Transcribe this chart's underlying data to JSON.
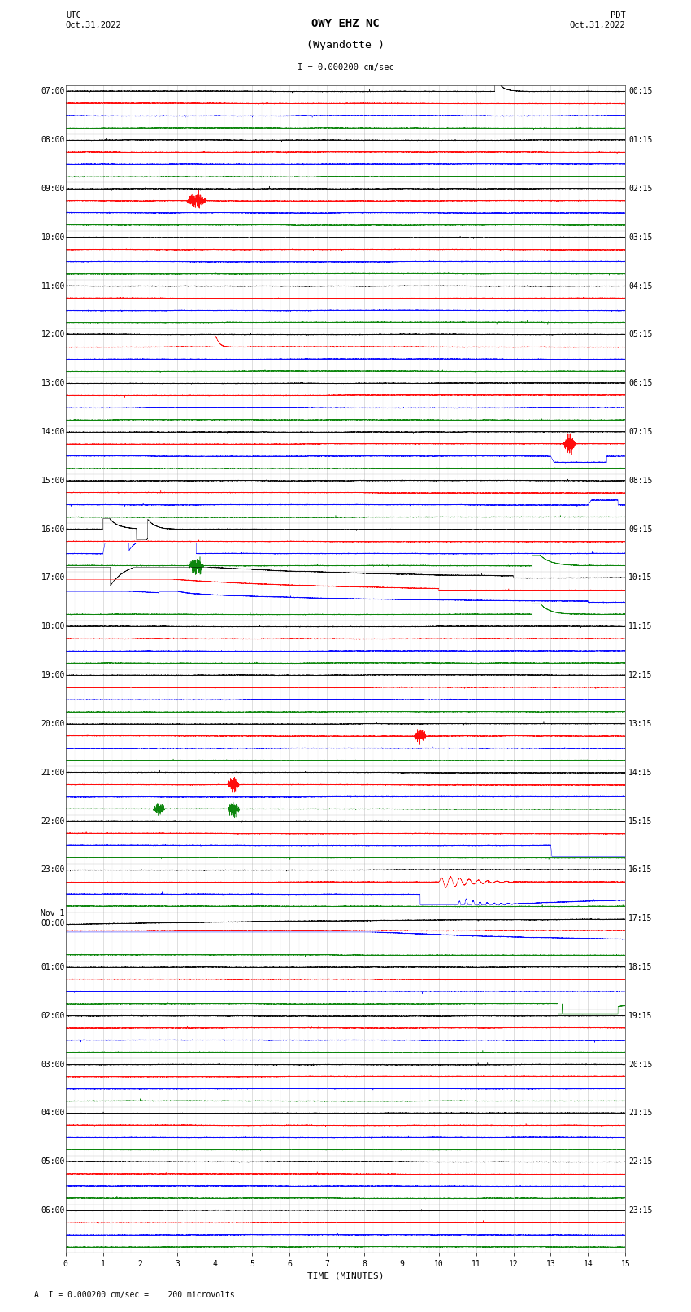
{
  "title_line1": "OWY EHZ NC",
  "title_line2": "(Wyandotte )",
  "scale_label": "I = 0.000200 cm/sec",
  "bottom_label": "A  I = 0.000200 cm/sec =    200 microvolts",
  "utc_label": "UTC\nOct.31,2022",
  "pdt_label": "PDT\nOct.31,2022",
  "xlabel": "TIME (MINUTES)",
  "left_times": [
    "07:00",
    "08:00",
    "09:00",
    "10:00",
    "11:00",
    "12:00",
    "13:00",
    "14:00",
    "15:00",
    "16:00",
    "17:00",
    "18:00",
    "19:00",
    "20:00",
    "21:00",
    "22:00",
    "23:00",
    "Nov 1\n00:00",
    "01:00",
    "02:00",
    "03:00",
    "04:00",
    "05:00",
    "06:00"
  ],
  "right_times": [
    "00:15",
    "01:15",
    "02:15",
    "03:15",
    "04:15",
    "05:15",
    "06:15",
    "07:15",
    "08:15",
    "09:15",
    "10:15",
    "11:15",
    "12:15",
    "13:15",
    "14:15",
    "15:15",
    "16:15",
    "17:15",
    "18:15",
    "19:15",
    "20:15",
    "21:15",
    "22:15",
    "23:15"
  ],
  "n_rows": 24,
  "n_lines_per_row": 4,
  "bg_color": "#ffffff",
  "grid_color": "#999999",
  "line_colors": [
    "black",
    "red",
    "blue",
    "green"
  ],
  "title_fontsize": 10,
  "label_fontsize": 7.5,
  "tick_fontsize": 7
}
